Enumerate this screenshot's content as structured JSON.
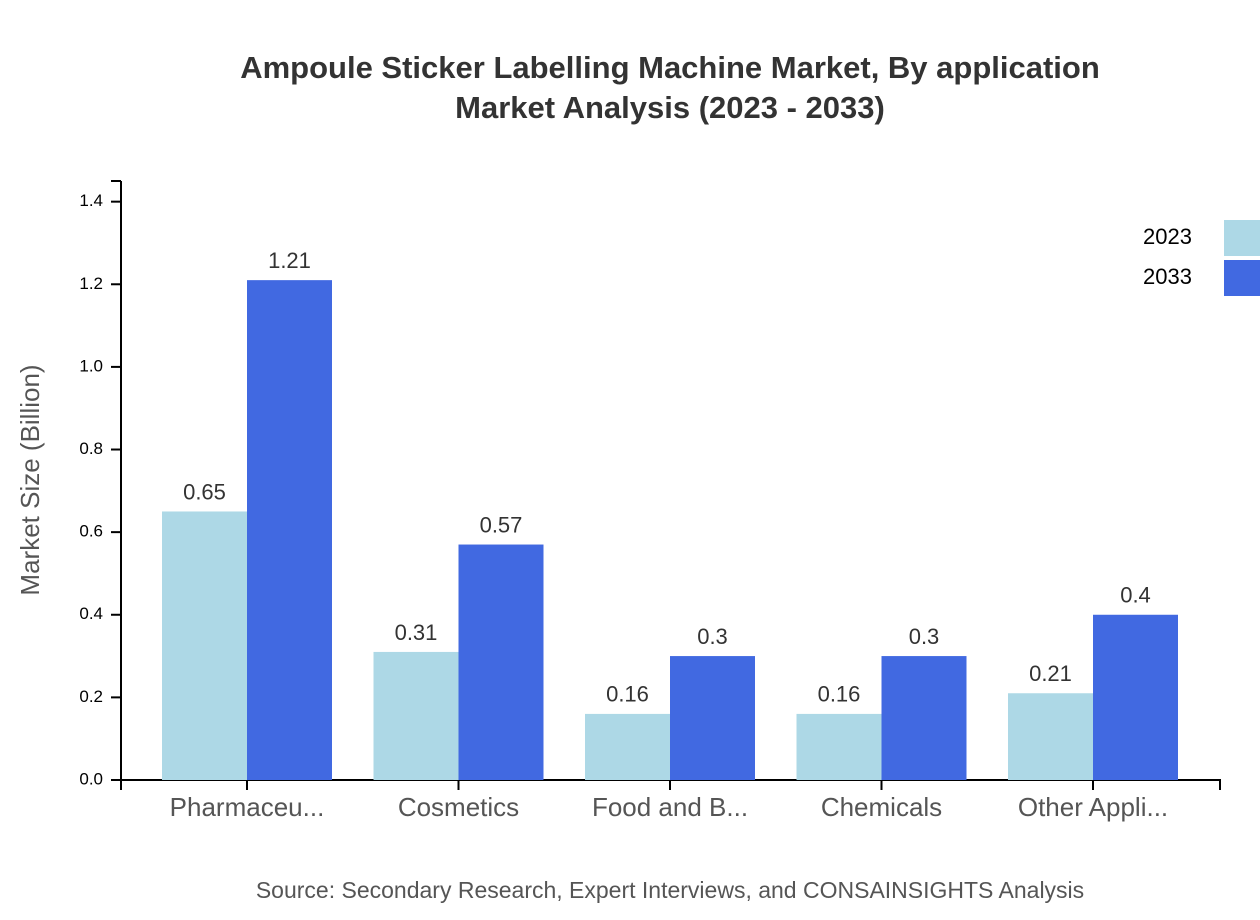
{
  "chart_data": {
    "type": "grouped-bar",
    "title": "Ampoule Sticker Labelling Machine Market, By application",
    "subtitle": "Market Analysis (2023 - 2033)",
    "y_label": "Market Size (Billion)",
    "source": "Source: Secondary Research, Expert Interviews, and CONSAINSIGHTS Analysis",
    "categories": [
      "Pharmaceu...",
      "Cosmetics",
      "Food and B...",
      "Chemicals",
      "Other Appli..."
    ],
    "series": [
      {
        "name": "2023",
        "color": "#add8e6",
        "values": [
          0.65,
          0.31,
          0.16,
          0.16,
          0.21
        ]
      },
      {
        "name": "2033",
        "color": "#4169e1",
        "values": [
          1.21,
          0.57,
          0.3,
          0.3,
          0.4
        ]
      }
    ],
    "ylim": [
      0,
      1.45
    ],
    "yticks": [
      {
        "value": 0,
        "label": "0.0"
      },
      0.2,
      0.4,
      0.6,
      0.8,
      {
        "value": 1,
        "label": "1.0"
      },
      1.2,
      1.4
    ],
    "legend": "top-right"
  }
}
